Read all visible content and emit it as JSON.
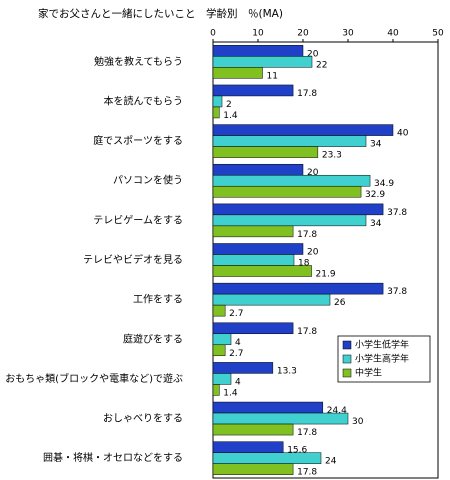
{
  "chart_data": {
    "type": "barh",
    "title": "家でお父さんと一緒にしたいこと　学齢別　％(MA)",
    "categories": [
      "勉強を教えてもらう",
      "本を読んでもらう",
      "庭でスポーツをする",
      "パソコンを使う",
      "テレビゲームをする",
      "テレビやビデオを見る",
      "工作をする",
      "庭遊びをする",
      "おもちゃ類(ブロックや電車など)で遊ぶ",
      "おしゃべりをする",
      "囲碁・将棋・オセロなどをする"
    ],
    "series": [
      {
        "name": "小学生低学年",
        "color": "#2040c8",
        "values": [
          20,
          17.8,
          40,
          20,
          37.8,
          20,
          37.8,
          17.8,
          13.3,
          24.4,
          15.6
        ]
      },
      {
        "name": "小学生高学年",
        "color": "#40d0d0",
        "values": [
          22,
          2,
          34,
          34.9,
          34,
          18,
          26,
          4,
          4,
          30,
          24
        ]
      },
      {
        "name": "中学生",
        "color": "#80c020",
        "values": [
          11,
          1.4,
          23.3,
          32.9,
          17.8,
          21.9,
          2.7,
          2.7,
          1.4,
          17.8,
          17.8
        ]
      }
    ],
    "xlim": [
      0,
      50
    ],
    "xticks": [
      0,
      10,
      20,
      30,
      40,
      50
    ],
    "legend": "lower-right"
  }
}
